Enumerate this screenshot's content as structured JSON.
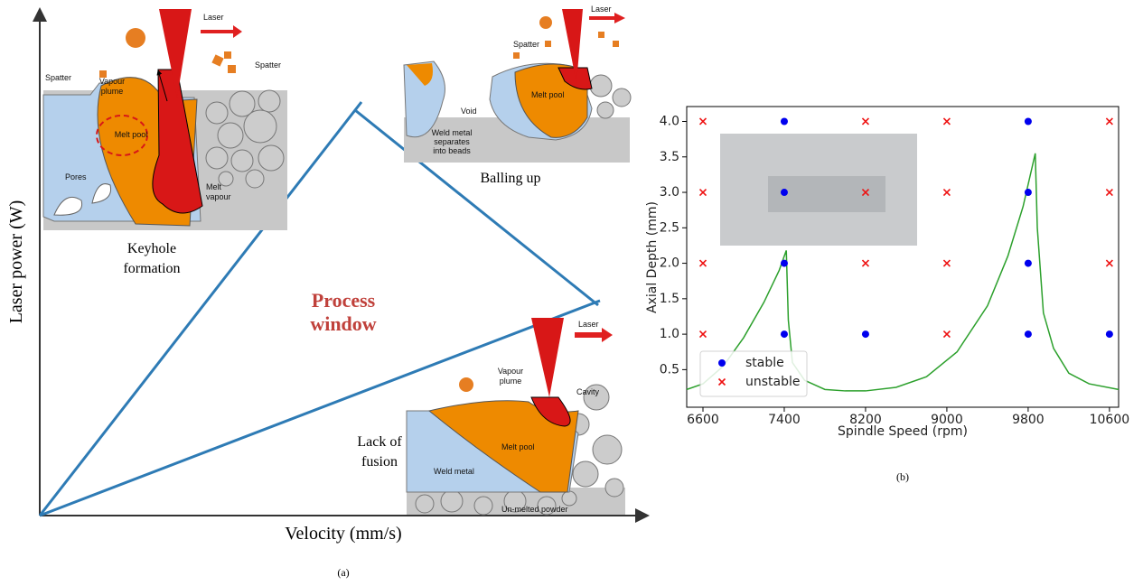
{
  "panel_a": {
    "y_axis_label": "Laser power (W)",
    "x_axis_label": "Velocity (mm/s)",
    "caption": "(a)",
    "process_window": [
      "Process",
      "window"
    ],
    "keyhole": {
      "laser": "Laser",
      "vapour_plume": [
        "Vapour",
        "plume"
      ],
      "spatter_left": "Spatter",
      "spatter_right": "Spatter",
      "melt_pool": "Melt pool",
      "pores": "Pores",
      "melt_vapour": [
        "Melt",
        "vapour"
      ],
      "title": [
        "Keyhole",
        "formation"
      ]
    },
    "balling": {
      "laser": "Laser",
      "spatter": "Spatter",
      "melt_pool": "Melt pool",
      "void": "Void",
      "weld_metal": [
        "Weld metal",
        "separates",
        "into beads"
      ],
      "title": "Balling up"
    },
    "lack_of_fusion": {
      "laser": "Laser",
      "vapour_plume": [
        "Vapour",
        "plume"
      ],
      "cavity": "Cavity",
      "melt_pool": "Melt pool",
      "weld_metal": "Weld metal",
      "powder": "Un-melted powder",
      "title": [
        "Lack of",
        "fusion"
      ]
    }
  },
  "chart_data": {
    "type": "scatter",
    "caption": "(b)",
    "x_label": "Spindle Speed (rpm)",
    "y_label": "Axial Depth (mm)",
    "xlim": [
      6440,
      10690
    ],
    "ylim": [
      -0.03,
      4.21
    ],
    "xticks": [
      6600,
      7400,
      8200,
      9000,
      9800,
      10600
    ],
    "yticks": [
      0.5,
      {
        "value": 1,
        "label": "1.0"
      },
      1.5,
      {
        "value": 2,
        "label": "2.0"
      },
      2.5,
      {
        "value": 3,
        "label": "3.0"
      },
      3.5,
      {
        "value": 4,
        "label": "4.0"
      }
    ],
    "legend": "lower left",
    "series": [
      {
        "name": "stable",
        "color": "#0000ee",
        "marker": "o",
        "x": [
          7400,
          7400,
          7400,
          7400,
          8200,
          9800,
          9800,
          9800,
          9800,
          10600
        ],
        "values": [
          4,
          3,
          2,
          1,
          1,
          4,
          3,
          2,
          1,
          1
        ]
      },
      {
        "name": "unstable",
        "color": "#ee1111",
        "marker": "x",
        "x": [
          6600,
          6600,
          6600,
          6600,
          8200,
          8200,
          8200,
          9000,
          9000,
          9000,
          9000,
          10600,
          10600,
          10600
        ],
        "values": [
          4,
          3,
          2,
          1,
          4,
          3,
          2,
          4,
          3,
          2,
          1,
          4,
          3,
          2
        ]
      }
    ],
    "lines": [
      {
        "color": "#2ca02c",
        "x": [
          6440,
          6600,
          6800,
          7000,
          7200,
          7350,
          7420,
          7440,
          7480,
          7600,
          7800,
          8000,
          8200,
          8500,
          8800,
          9100,
          9400,
          9600,
          9750,
          9870,
          9890,
          9950,
          10050,
          10200,
          10400,
          10690
        ],
        "values": [
          0.22,
          0.3,
          0.55,
          0.95,
          1.45,
          1.9,
          2.18,
          1.2,
          0.6,
          0.35,
          0.22,
          0.2,
          0.2,
          0.25,
          0.4,
          0.75,
          1.4,
          2.1,
          2.8,
          3.55,
          2.5,
          1.3,
          0.8,
          0.45,
          0.3,
          0.22
        ]
      }
    ]
  }
}
